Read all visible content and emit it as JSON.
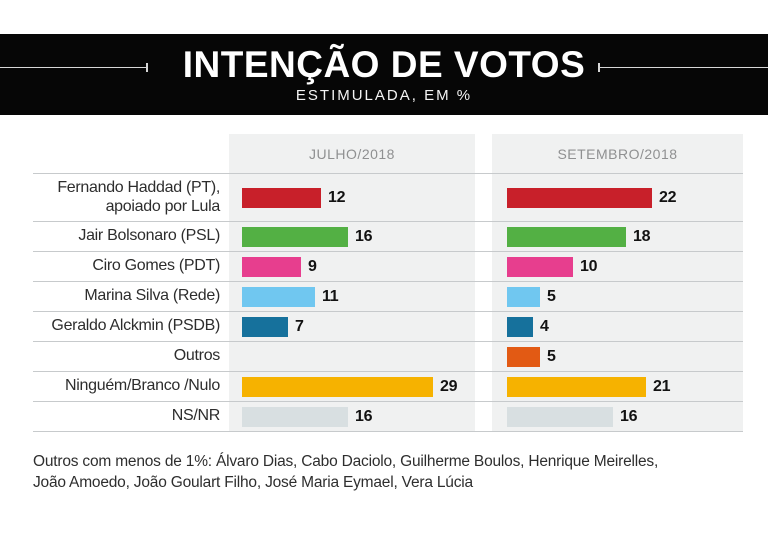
{
  "header": {
    "title": "INTENÇÃO DE VOTOS",
    "subtitle": "ESTIMULADA, EM %"
  },
  "chart_data": {
    "type": "bar",
    "orientation": "horizontal",
    "title": "INTENÇÃO DE VOTOS",
    "subtitle": "ESTIMULADA, EM %",
    "unit": "%",
    "value_range": [
      0,
      29
    ],
    "grid": false,
    "columns": [
      "JULHO/2018",
      "SETEMBRO/2018"
    ],
    "series": [
      {
        "label": "Fernando Haddad (PT),\napoiado por Lula",
        "color": "#c8202a",
        "values": [
          12,
          22
        ]
      },
      {
        "label": "Jair Bolsonaro (PSL)",
        "color": "#53b044",
        "values": [
          16,
          18
        ]
      },
      {
        "label": "Ciro Gomes (PDT)",
        "color": "#e73e8e",
        "values": [
          9,
          10
        ]
      },
      {
        "label": "Marina Silva (Rede)",
        "color": "#70c7f0",
        "values": [
          11,
          5
        ]
      },
      {
        "label": "Geraldo Alckmin (PSDB)",
        "color": "#16719c",
        "values": [
          7,
          4
        ]
      },
      {
        "label": "Outros",
        "color": "#e25a14",
        "values": [
          null,
          5
        ]
      },
      {
        "label": "Ninguém/Branco /Nulo",
        "color": "#f6b200",
        "values": [
          29,
          21
        ]
      },
      {
        "label": "NS/NR",
        "color": "#d8dfe1",
        "values": [
          16,
          16
        ]
      }
    ]
  },
  "footnote": "Outros com menos de 1%: Álvaro Dias, Cabo Daciolo, Guilherme Boulos, Henrique Meirelles,\nJoão Amoedo, João Goulart Filho, José Maria Eymael, Vera Lúcia"
}
